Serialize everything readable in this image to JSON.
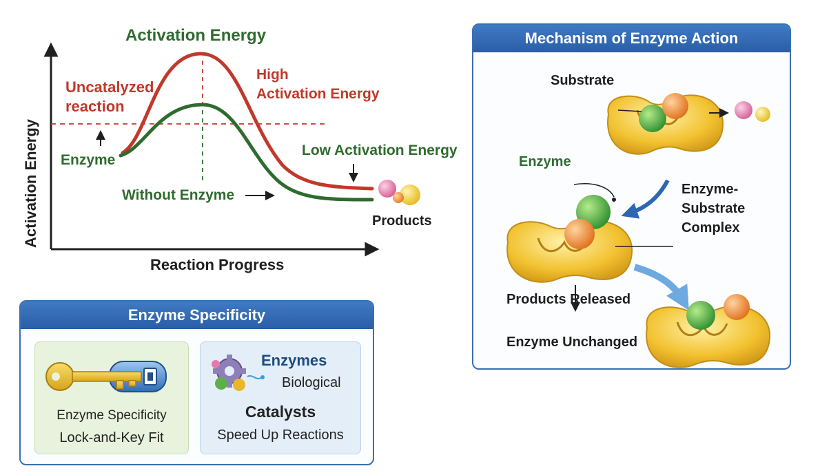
{
  "energy_diagram": {
    "title": "Activation Energy",
    "y_axis_label": "Activation Energy",
    "x_axis_label": "Reaction Progress",
    "uncatalyzed_label_line1": "Uncatalyzed",
    "uncatalyzed_label_line2": "reaction",
    "high_label_line1": "High",
    "high_label_line2": "Activation Energy",
    "low_label": "Low Activation Energy",
    "enzyme_label": "Enzyme",
    "without_enzyme_label": "Without Enzyme",
    "products_label": "Products",
    "colors": {
      "uncatalyzed": "#c0392b",
      "catalyzed": "#2f6b2f"
    }
  },
  "mechanism_panel": {
    "title": "Mechanism of Enzyme Action",
    "substrate_label": "Substrate",
    "enzyme_label": "Enzyme",
    "complex_label_line1": "Enzyme-",
    "complex_label_line2": "Substrate",
    "complex_label_line3": "Complex",
    "products_released_label": "Products Released",
    "enzyme_unchanged_label": "Enzyme Unchanged"
  },
  "specificity_panel": {
    "title": "Enzyme Specificity",
    "left_card_line1": "Enzyme Specificity",
    "left_card_line2": "Lock-and-Key Fit",
    "right_card_title": "Enzymes",
    "right_card_sub": "Biological",
    "right_card_catalysts": "Catalysts",
    "right_card_speed": "Speed Up Reactions"
  },
  "accent_colors": {
    "panel_blue": "#2a5ea6",
    "enzyme_yellow": "#f2c230",
    "substrate_green": "#3aa64a",
    "substrate_orange": "#ef8a24",
    "product_pink": "#e070a6"
  }
}
